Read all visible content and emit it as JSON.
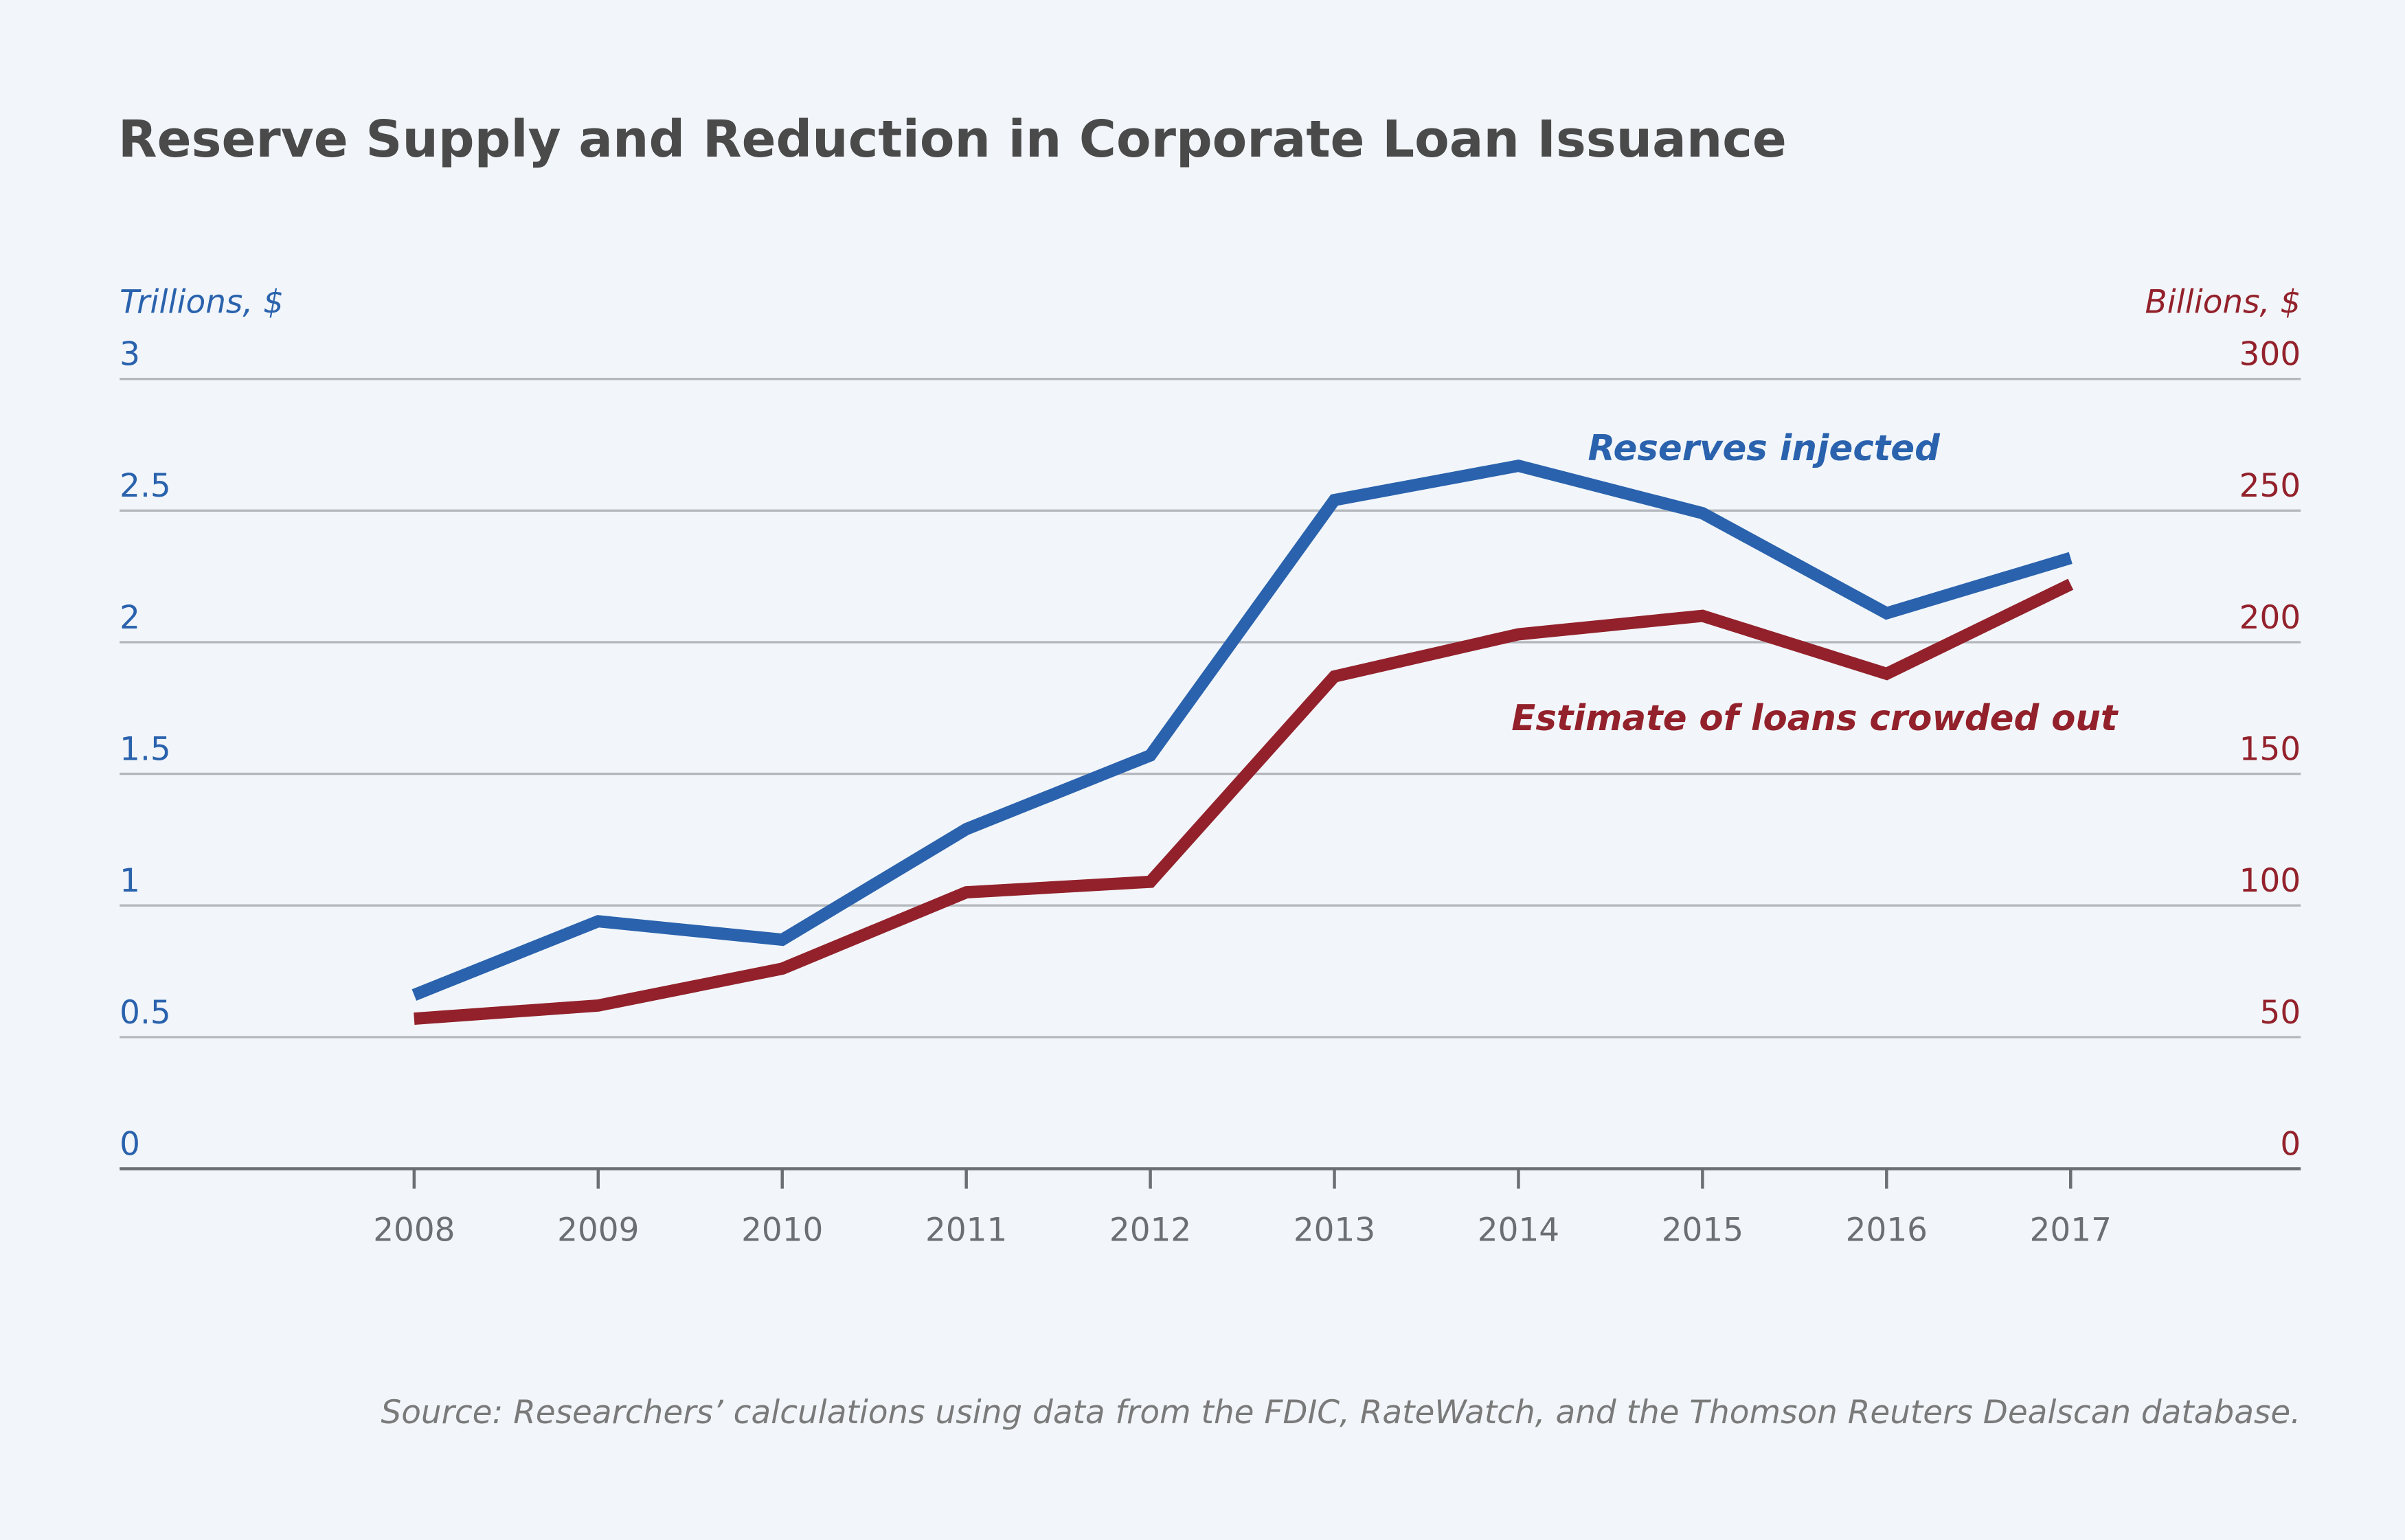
{
  "chart_data": {
    "type": "line",
    "title": "Reserve Supply and Reduction in Corporate Loan Issuance",
    "y_label": "Trillions, $",
    "y2_label": "Billions, $",
    "source": "Source: Researchers’ calculations using data from the FDIC, RateWatch, and the Thomson Reuters Dealscan database.",
    "categories": [
      "2008",
      "2009",
      "2010",
      "2011",
      "2012",
      "2013",
      "2014",
      "2015",
      "2016",
      "2017"
    ],
    "series": [
      {
        "name": "Reserves injected",
        "color": "#2a62ad",
        "values": [
          0.66,
          0.94,
          0.87,
          1.29,
          1.57,
          2.54,
          2.67,
          2.49,
          2.11,
          2.32
        ]
      },
      {
        "name": "Estimate of loans crowded out",
        "color": "#93212b",
        "axis": "y2",
        "values": [
          57,
          62,
          76,
          105,
          109,
          187,
          203,
          210,
          188,
          222
        ]
      }
    ],
    "ylim": [
      0,
      3
    ],
    "yticks": [
      0,
      0.5,
      1,
      1.5,
      2,
      2.5,
      3
    ],
    "y2lim": [
      0,
      300
    ],
    "y2ticks": [
      0,
      50,
      100,
      150,
      200,
      250,
      300
    ],
    "grid": true
  }
}
